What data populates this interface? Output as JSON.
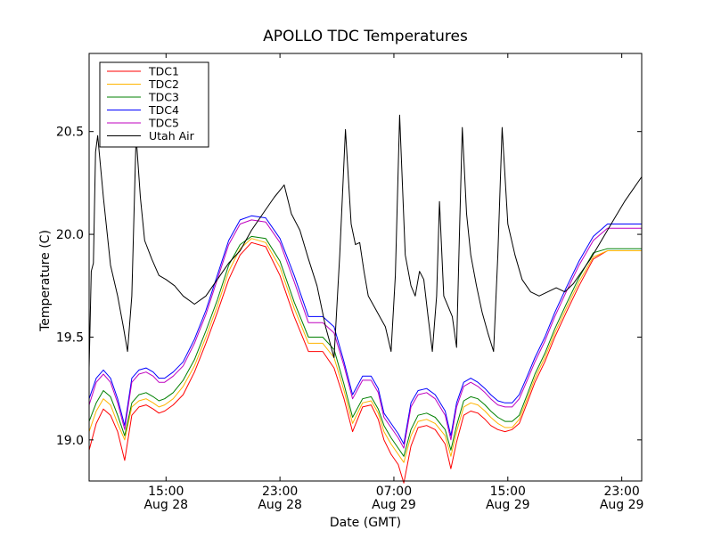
{
  "chart_data": {
    "type": "line",
    "title": "APOLLO TDC Temperatures",
    "xlabel": "Date (GMT)",
    "ylabel": "Temperature (C)",
    "xlim": [
      9.6,
      48.4
    ],
    "ylim": [
      18.8,
      20.88
    ],
    "grid": false,
    "legend_position": "upper-left",
    "x_units": "hours since Aug 28 00:00 GMT",
    "x_ticks": [
      {
        "value": 15,
        "time": "15:00",
        "date": "Aug 28"
      },
      {
        "value": 23,
        "time": "23:00",
        "date": "Aug 28"
      },
      {
        "value": 31,
        "time": "07:00",
        "date": "Aug 29"
      },
      {
        "value": 39,
        "time": "15:00",
        "date": "Aug 29"
      },
      {
        "value": 47,
        "time": "23:00",
        "date": "Aug 29"
      }
    ],
    "y_ticks": [
      {
        "value": 19.0,
        "label": "19.0"
      },
      {
        "value": 19.5,
        "label": "19.5"
      },
      {
        "value": 20.0,
        "label": "20.0"
      },
      {
        "value": 20.5,
        "label": "20.5"
      }
    ],
    "series": [
      {
        "name": "TDC1",
        "color": "#ff0000",
        "x": [
          9.6,
          10.1,
          10.6,
          11.1,
          11.6,
          12.1,
          12.6,
          13.1,
          13.6,
          14.1,
          14.5,
          14.9,
          15.5,
          16.2,
          17.0,
          17.8,
          18.6,
          19.4,
          20.2,
          21.0,
          22.0,
          23.0,
          24.0,
          25.0,
          26.0,
          26.8,
          27.5,
          28.1,
          28.8,
          29.4,
          29.9,
          30.3,
          30.8,
          31.3,
          31.7,
          32.2,
          32.7,
          33.3,
          33.9,
          34.6,
          35.0,
          35.4,
          35.9,
          36.4,
          36.9,
          37.4,
          37.8,
          38.3,
          38.8,
          39.3,
          39.8,
          40.3,
          40.9,
          41.6,
          42.3,
          43.1,
          44.0,
          45.0,
          46.0,
          47.0,
          48.0,
          48.4
        ],
        "y": [
          18.95,
          19.08,
          19.15,
          19.12,
          19.04,
          18.9,
          19.12,
          19.16,
          19.17,
          19.15,
          19.13,
          19.14,
          19.17,
          19.22,
          19.33,
          19.47,
          19.62,
          19.78,
          19.9,
          19.96,
          19.94,
          19.8,
          19.6,
          19.43,
          19.43,
          19.35,
          19.2,
          19.04,
          19.16,
          19.17,
          19.1,
          19.0,
          18.93,
          18.88,
          18.79,
          18.97,
          19.06,
          19.07,
          19.05,
          18.98,
          18.86,
          18.99,
          19.12,
          19.14,
          19.13,
          19.1,
          19.07,
          19.05,
          19.04,
          19.05,
          19.08,
          19.17,
          19.28,
          19.38,
          19.5,
          19.62,
          19.75,
          19.88,
          19.92,
          19.92,
          19.92,
          19.92
        ]
      },
      {
        "name": "TDC2",
        "color": "#ffb400",
        "x": [
          9.6,
          10.1,
          10.6,
          11.1,
          11.6,
          12.1,
          12.6,
          13.1,
          13.6,
          14.1,
          14.5,
          14.9,
          15.5,
          16.2,
          17.0,
          17.8,
          18.6,
          19.4,
          20.2,
          21.0,
          22.0,
          23.0,
          24.0,
          25.0,
          26.0,
          26.8,
          27.5,
          28.1,
          28.8,
          29.4,
          29.9,
          30.3,
          30.8,
          31.3,
          31.7,
          32.2,
          32.7,
          33.3,
          33.9,
          34.6,
          35.0,
          35.4,
          35.9,
          36.4,
          36.9,
          37.4,
          37.8,
          38.3,
          38.8,
          39.3,
          39.8,
          40.3,
          40.9,
          41.6,
          42.3,
          43.1,
          44.0,
          45.0,
          46.0,
          47.0,
          48.0,
          48.4
        ],
        "y": [
          19.04,
          19.14,
          19.2,
          19.17,
          19.08,
          19.0,
          19.16,
          19.19,
          19.2,
          19.18,
          19.16,
          19.17,
          19.2,
          19.26,
          19.36,
          19.5,
          19.65,
          19.82,
          19.93,
          19.98,
          19.96,
          19.84,
          19.64,
          19.47,
          19.47,
          19.4,
          19.24,
          19.08,
          19.18,
          19.19,
          19.13,
          19.04,
          18.98,
          18.93,
          18.89,
          19.02,
          19.09,
          19.1,
          19.08,
          19.02,
          18.92,
          19.04,
          19.16,
          19.18,
          19.17,
          19.14,
          19.11,
          19.08,
          19.06,
          19.06,
          19.1,
          19.19,
          19.3,
          19.4,
          19.52,
          19.64,
          19.77,
          19.89,
          19.92,
          19.92,
          19.92,
          19.92
        ]
      },
      {
        "name": "TDC3",
        "color": "#008000",
        "x": [
          9.6,
          10.1,
          10.6,
          11.1,
          11.6,
          12.1,
          12.6,
          13.1,
          13.6,
          14.1,
          14.5,
          14.9,
          15.5,
          16.2,
          17.0,
          17.8,
          18.6,
          19.4,
          20.2,
          21.0,
          22.0,
          23.0,
          24.0,
          25.0,
          26.0,
          26.8,
          27.5,
          28.1,
          28.8,
          29.4,
          29.9,
          30.3,
          30.8,
          31.3,
          31.7,
          32.2,
          32.7,
          33.3,
          33.9,
          34.6,
          35.0,
          35.4,
          35.9,
          36.4,
          36.9,
          37.4,
          37.8,
          38.3,
          38.8,
          39.3,
          39.8,
          40.3,
          40.9,
          41.6,
          42.3,
          43.1,
          44.0,
          45.0,
          46.0,
          47.0,
          48.0,
          48.4
        ],
        "y": [
          19.09,
          19.18,
          19.24,
          19.21,
          19.12,
          19.02,
          19.18,
          19.22,
          19.23,
          19.21,
          19.19,
          19.2,
          19.23,
          19.29,
          19.39,
          19.53,
          19.68,
          19.85,
          19.95,
          19.99,
          19.98,
          19.87,
          19.67,
          19.5,
          19.5,
          19.44,
          19.27,
          19.11,
          19.2,
          19.21,
          19.15,
          19.07,
          19.01,
          18.96,
          18.92,
          19.05,
          19.12,
          19.13,
          19.11,
          19.05,
          18.95,
          19.07,
          19.19,
          19.21,
          19.2,
          19.17,
          19.14,
          19.11,
          19.09,
          19.09,
          19.12,
          19.21,
          19.32,
          19.42,
          19.54,
          19.66,
          19.79,
          19.91,
          19.93,
          19.93,
          19.93,
          19.93
        ]
      },
      {
        "name": "TDC4",
        "color": "#0000ff",
        "x": [
          9.6,
          10.1,
          10.6,
          11.1,
          11.6,
          12.1,
          12.6,
          13.1,
          13.6,
          14.1,
          14.5,
          14.9,
          15.5,
          16.2,
          17.0,
          17.8,
          18.6,
          19.4,
          20.2,
          21.0,
          22.0,
          23.0,
          24.0,
          25.0,
          26.0,
          26.8,
          27.5,
          28.1,
          28.8,
          29.4,
          29.9,
          30.3,
          30.8,
          31.3,
          31.7,
          32.2,
          32.7,
          33.3,
          33.9,
          34.6,
          35.0,
          35.4,
          35.9,
          36.4,
          36.9,
          37.4,
          37.8,
          38.3,
          38.8,
          39.3,
          39.8,
          40.3,
          40.9,
          41.6,
          42.3,
          43.1,
          44.0,
          45.0,
          46.0,
          47.0,
          48.0,
          48.4
        ],
        "y": [
          19.2,
          19.3,
          19.34,
          19.3,
          19.2,
          19.07,
          19.3,
          19.34,
          19.35,
          19.33,
          19.3,
          19.3,
          19.33,
          19.38,
          19.49,
          19.63,
          19.8,
          19.97,
          20.07,
          20.09,
          20.08,
          19.98,
          19.8,
          19.6,
          19.6,
          19.55,
          19.38,
          19.22,
          19.31,
          19.31,
          19.25,
          19.13,
          19.08,
          19.03,
          18.98,
          19.18,
          19.24,
          19.25,
          19.22,
          19.14,
          19.02,
          19.18,
          19.28,
          19.3,
          19.28,
          19.25,
          19.22,
          19.19,
          19.18,
          19.18,
          19.22,
          19.3,
          19.4,
          19.5,
          19.62,
          19.74,
          19.87,
          19.99,
          20.05,
          20.05,
          20.05,
          20.05
        ]
      },
      {
        "name": "TDC5",
        "color": "#bf00bf",
        "x": [
          9.6,
          10.1,
          10.6,
          11.1,
          11.6,
          12.1,
          12.6,
          13.1,
          13.6,
          14.1,
          14.5,
          14.9,
          15.5,
          16.2,
          17.0,
          17.8,
          18.6,
          19.4,
          20.2,
          21.0,
          22.0,
          23.0,
          24.0,
          25.0,
          26.0,
          26.8,
          27.5,
          28.1,
          28.8,
          29.4,
          29.9,
          30.3,
          30.8,
          31.3,
          31.7,
          32.2,
          32.7,
          33.3,
          33.9,
          34.6,
          35.0,
          35.4,
          35.9,
          36.4,
          36.9,
          37.4,
          37.8,
          38.3,
          38.8,
          39.3,
          39.8,
          40.3,
          40.9,
          41.6,
          42.3,
          43.1,
          44.0,
          45.0,
          46.0,
          47.0,
          48.0,
          48.4
        ],
        "y": [
          19.17,
          19.28,
          19.32,
          19.28,
          19.18,
          19.05,
          19.28,
          19.32,
          19.33,
          19.31,
          19.28,
          19.28,
          19.31,
          19.36,
          19.47,
          19.61,
          19.78,
          19.95,
          20.05,
          20.07,
          20.06,
          19.96,
          19.77,
          19.57,
          19.57,
          19.52,
          19.36,
          19.2,
          19.29,
          19.29,
          19.23,
          19.11,
          19.06,
          19.01,
          18.96,
          19.16,
          19.22,
          19.23,
          19.2,
          19.12,
          19.0,
          19.16,
          19.26,
          19.28,
          19.26,
          19.23,
          19.2,
          19.17,
          19.16,
          19.16,
          19.2,
          19.28,
          19.38,
          19.48,
          19.6,
          19.72,
          19.85,
          19.97,
          20.03,
          20.03,
          20.03,
          20.03
        ]
      },
      {
        "name": "Utah Air",
        "color": "#000000",
        "x": [
          9.6,
          9.75,
          9.9,
          10.05,
          10.2,
          10.6,
          11.1,
          11.6,
          12.0,
          12.3,
          12.6,
          12.9,
          13.2,
          13.5,
          14.0,
          14.5,
          15.0,
          15.6,
          16.2,
          17.0,
          17.8,
          18.6,
          19.4,
          20.2,
          21.0,
          21.8,
          22.6,
          23.3,
          23.8,
          24.4,
          25.0,
          25.6,
          26.2,
          26.8,
          27.2,
          27.6,
          28.0,
          28.3,
          28.6,
          28.9,
          29.2,
          29.6,
          30.0,
          30.4,
          30.8,
          31.1,
          31.4,
          31.8,
          32.2,
          32.5,
          32.8,
          33.1,
          33.4,
          33.7,
          34.0,
          34.2,
          34.5,
          34.8,
          35.1,
          35.4,
          35.6,
          35.8,
          36.1,
          36.4,
          36.8,
          37.2,
          37.6,
          38.0,
          38.3,
          38.6,
          39.0,
          39.5,
          40.0,
          40.6,
          41.2,
          41.8,
          42.4,
          43.0,
          43.6,
          44.2,
          44.8,
          45.4,
          46.0,
          46.6,
          47.2,
          47.8,
          48.4
        ],
        "y": [
          19.35,
          19.82,
          19.86,
          20.4,
          20.48,
          20.18,
          19.85,
          19.7,
          19.55,
          19.43,
          19.7,
          20.48,
          20.18,
          19.97,
          19.88,
          19.8,
          19.78,
          19.75,
          19.7,
          19.66,
          19.7,
          19.78,
          19.86,
          19.92,
          20.02,
          20.1,
          20.18,
          20.24,
          20.1,
          20.02,
          19.88,
          19.75,
          19.55,
          19.4,
          19.9,
          20.51,
          20.05,
          19.95,
          19.96,
          19.82,
          19.7,
          19.65,
          19.6,
          19.55,
          19.43,
          19.8,
          20.58,
          19.9,
          19.75,
          19.7,
          19.82,
          19.78,
          19.6,
          19.43,
          19.7,
          20.16,
          19.7,
          19.65,
          19.6,
          19.45,
          20.0,
          20.52,
          20.1,
          19.9,
          19.75,
          19.62,
          19.52,
          19.43,
          19.9,
          20.52,
          20.05,
          19.9,
          19.78,
          19.72,
          19.7,
          19.72,
          19.74,
          19.72,
          19.76,
          19.82,
          19.88,
          19.95,
          20.02,
          20.09,
          20.16,
          20.22,
          20.28
        ]
      }
    ]
  }
}
